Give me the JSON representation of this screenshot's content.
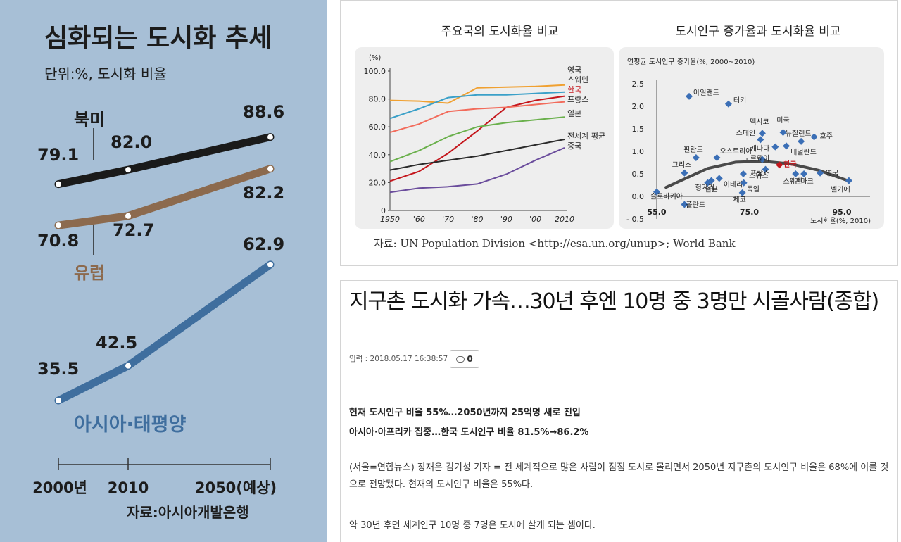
{
  "chart_data": [
    {
      "type": "line",
      "title": "심화되는 도시화 추세",
      "subtitle": "단위:%, 도시화 비율",
      "source": "자료:아시아개발은행",
      "categories": [
        "2000년",
        "2010",
        "2050(예상)"
      ],
      "x": [
        2000,
        2010,
        2050
      ],
      "series": [
        {
          "name": "북미",
          "values": [
            79.1,
            82.0,
            88.6
          ],
          "labels": [
            "79.1",
            "82.0",
            "88.6"
          ],
          "color": "#1a1a1a"
        },
        {
          "name": "유럽",
          "values": [
            70.8,
            72.7,
            82.2
          ],
          "labels": [
            "70.8",
            "72.7",
            "82.2"
          ],
          "color": "#8c6a4e"
        },
        {
          "name": "아시아·태평양",
          "values": [
            35.5,
            42.5,
            62.9
          ],
          "labels": [
            "35.5",
            "42.5",
            "62.9"
          ],
          "color": "#3f6e9e"
        }
      ]
    },
    {
      "type": "line",
      "title": "주요국의 도시화율 비교",
      "ylabel": "(%)",
      "ylim": [
        0,
        100
      ],
      "yticks": [
        "0",
        "20.0",
        "40.0",
        "60.0",
        "80.0",
        "100.0"
      ],
      "xticks": [
        "1950",
        "'60",
        "'70",
        "'80",
        "'90",
        "'00",
        "2010"
      ],
      "x": [
        1950,
        1960,
        1970,
        1980,
        1990,
        2000,
        2010
      ],
      "series": [
        {
          "name": "영국",
          "values": [
            79,
            78.5,
            77,
            88,
            88.5,
            89,
            90
          ],
          "color": "#f0a030"
        },
        {
          "name": "스웨덴",
          "values": [
            66,
            73,
            81,
            83,
            83,
            84,
            85
          ],
          "color": "#3aa0c8"
        },
        {
          "name": "한국",
          "values": [
            21,
            28,
            41,
            57,
            74,
            79,
            82
          ],
          "color": "#c4161c"
        },
        {
          "name": "프랑스",
          "values": [
            56,
            62,
            71,
            73,
            74,
            76,
            78
          ],
          "color": "#f26b5b"
        },
        {
          "name": "일본",
          "values": [
            35,
            43,
            53,
            60,
            63,
            65,
            67
          ],
          "color": "#6ab04c"
        },
        {
          "name": "전세계 평균",
          "values": [
            29,
            33,
            36,
            39,
            43,
            47,
            51
          ],
          "color": "#2a2a2a"
        },
        {
          "name": "중국",
          "values": [
            13,
            16,
            17,
            19,
            26,
            36,
            45
          ],
          "color": "#6a4c9c"
        }
      ]
    },
    {
      "type": "scatter",
      "title": "도시인구 증가율과 도시화율 비교",
      "ylabel": "연평균 도시인구 증가율(%, 2000~2010)",
      "xlabel": "도시화율(%, 2010)",
      "xlim": [
        55,
        95
      ],
      "ylim": [
        -0.5,
        2.5
      ],
      "xticks": [
        "55.0",
        "75.0",
        "95.0"
      ],
      "yticks": [
        "- 0.5",
        "0.0",
        "0.5",
        "1.0",
        "1.5",
        "2.0",
        "2.5"
      ],
      "points": [
        {
          "label": "아일랜드",
          "x": 62,
          "y": 2.22
        },
        {
          "label": "터키",
          "x": 70.5,
          "y": 2.05
        },
        {
          "label": "멕시코",
          "x": 77.8,
          "y": 1.4
        },
        {
          "label": "미국",
          "x": 82.3,
          "y": 1.42
        },
        {
          "label": "뉴질랜드",
          "x": 86.2,
          "y": 1.22
        },
        {
          "label": "호주",
          "x": 89,
          "y": 1.32
        },
        {
          "label": "스페인",
          "x": 77.4,
          "y": 1.26
        },
        {
          "label": "캐나다",
          "x": 80.6,
          "y": 1.1
        },
        {
          "label": "네덜란드",
          "x": 83,
          "y": 1.12
        },
        {
          "label": "오스트리아",
          "x": 68,
          "y": 0.86
        },
        {
          "label": "핀란드",
          "x": 63.5,
          "y": 0.86
        },
        {
          "label": "노르웨이",
          "x": 77.8,
          "y": 0.82
        },
        {
          "label": "그리스",
          "x": 61,
          "y": 0.52
        },
        {
          "label": "한국",
          "x": 81.5,
          "y": 0.7,
          "highlight": true
        },
        {
          "label": "프랑스",
          "x": 78.5,
          "y": 0.6
        },
        {
          "label": "스위스",
          "x": 73.7,
          "y": 0.5
        },
        {
          "label": "스웨덴",
          "x": 85,
          "y": 0.5
        },
        {
          "label": "덴마크",
          "x": 86.8,
          "y": 0.5
        },
        {
          "label": "영국",
          "x": 90.3,
          "y": 0.52
        },
        {
          "label": "헝가리",
          "x": 66,
          "y": 0.3
        },
        {
          "label": "일본",
          "x": 66.8,
          "y": 0.35
        },
        {
          "label": "이테리",
          "x": 68.5,
          "y": 0.4
        },
        {
          "label": "독일",
          "x": 73.8,
          "y": 0.3
        },
        {
          "label": "슬로바키아",
          "x": 55,
          "y": 0.1
        },
        {
          "label": "체코",
          "x": 73.5,
          "y": 0.08
        },
        {
          "label": "폴란드",
          "x": 61,
          "y": -0.18
        },
        {
          "label": "벨기에",
          "x": 96.5,
          "y": 0.35
        }
      ],
      "trendline": {
        "type": "quadratic",
        "x": [
          57,
          66,
          72,
          78,
          84,
          90,
          96
        ],
        "y": [
          0.2,
          0.62,
          0.76,
          0.78,
          0.72,
          0.58,
          0.36
        ]
      }
    }
  ],
  "figure": {
    "left_bg": "#a7bfd6",
    "source_text": "자료: UN Population Division <http://esa.un.org/unup>; World Bank"
  },
  "article": {
    "title": "지구촌 도시화 가속…30년 후엔 10명 중 3명만 시골사람(종합)",
    "meta": "입력 : 2018.05.17 16:38:57",
    "comment_count": "0",
    "subtitle_1": "현재 도시인구 비율 55%…2050년까지 25억명 새로 진입",
    "subtitle_2": "아시아·아프리카 집중…한국 도시인구 비율 81.5%→86.2%",
    "paragraph_1": "(서울=연합뉴스) 장재은 김기성 기자 = 전 세계적으로 많은 사람이 점점 도시로 몰리면서 2050년 지구촌의 도시인구 비율은 68%에 이를 것으로 전망됐다. 현재의 도시인구 비율은 55%다.",
    "paragraph_2": "약 30년 후면 세계인구 10명 중 7명은 도시에 살게 되는 셈이다."
  }
}
